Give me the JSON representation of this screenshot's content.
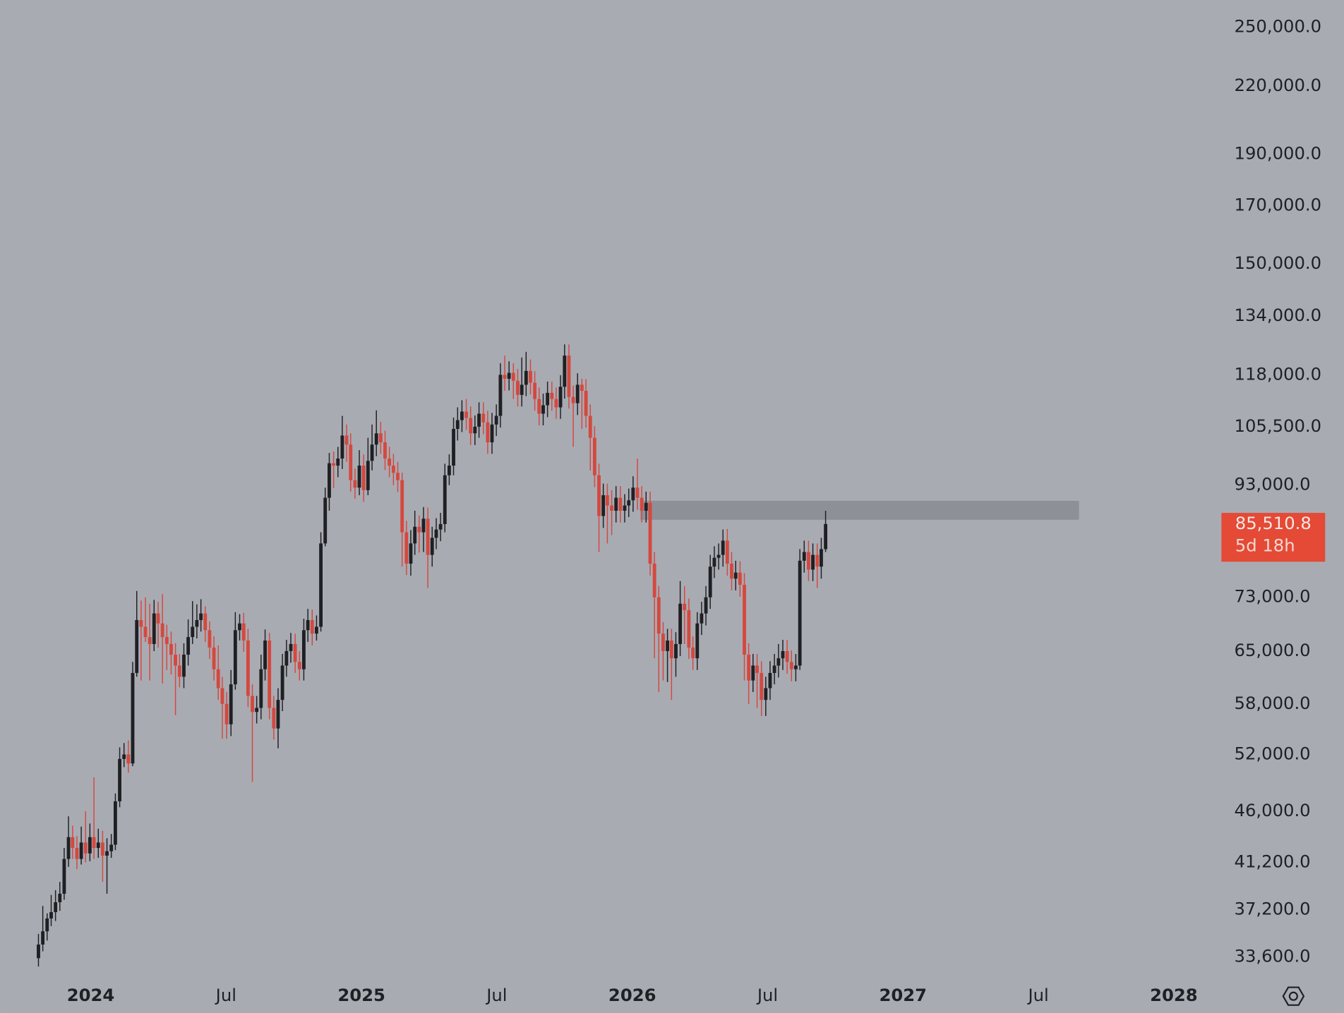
{
  "chart_data": {
    "type": "candlestick",
    "log_scale": true,
    "grid": false,
    "background": "#a9abb3",
    "up_color": "#1f2023",
    "down_color": "#d4483e",
    "xlim": [
      2023.665,
      2028.16
    ],
    "xticks": [
      2024,
      {
        "value": 2024.5,
        "label": "Jul"
      },
      2025,
      {
        "value": 2025.5,
        "label": "Jul"
      },
      2026,
      {
        "value": 2026.5,
        "label": "Jul"
      },
      2027,
      {
        "value": 2027.5,
        "label": "Jul"
      },
      2028
    ],
    "ylim": [
      32200,
      265000
    ],
    "yticks": [
      {
        "value": 250000,
        "label": "250,000.0"
      },
      {
        "value": 220000,
        "label": "220,000.0"
      },
      {
        "value": 190000,
        "label": "190,000.0"
      },
      {
        "value": 170000,
        "label": "170,000.0"
      },
      {
        "value": 150000,
        "label": "150,000.0"
      },
      {
        "value": 134000,
        "label": "134,000.0"
      },
      {
        "value": 118000,
        "label": "118,000.0"
      },
      {
        "value": 105500,
        "label": "105,500.0"
      },
      {
        "value": 93000,
        "label": "93,000.0"
      },
      {
        "value": 73000,
        "label": "73,000.0"
      },
      {
        "value": 65000,
        "label": "65,000.0"
      },
      {
        "value": 58000,
        "label": "58,000.0"
      },
      {
        "value": 52000,
        "label": "52,000.0"
      },
      {
        "value": 46000,
        "label": "46,000.0"
      },
      {
        "value": 41200,
        "label": "41,200.0"
      },
      {
        "value": 37200,
        "label": "37,200.0"
      },
      {
        "value": 33600,
        "label": "33,600.0"
      }
    ],
    "last_price": {
      "value": 85510.8,
      "label": "85,510.8"
    },
    "countdown": "5d 18h",
    "price_label_color": "#e44a35",
    "zone": {
      "x": [
        2026.03,
        2027.65
      ],
      "y": [
        86300,
        89900
      ],
      "color": "#8e9097"
    },
    "x": [
      2023.807,
      2023.823,
      2023.839,
      2023.854,
      2023.87,
      2023.886,
      2023.902,
      2023.918,
      2023.933,
      2023.949,
      2023.965,
      2023.981,
      2023.997,
      2024.012,
      2024.028,
      2024.044,
      2024.06,
      2024.076,
      2024.091,
      2024.107,
      2024.123,
      2024.139,
      2024.155,
      2024.17,
      2024.186,
      2024.202,
      2024.218,
      2024.234,
      2024.249,
      2024.265,
      2024.281,
      2024.297,
      2024.313,
      2024.328,
      2024.344,
      2024.36,
      2024.376,
      2024.392,
      2024.407,
      2024.423,
      2024.439,
      2024.455,
      2024.471,
      2024.486,
      2024.502,
      2024.518,
      2024.534,
      2024.55,
      2024.565,
      2024.581,
      2024.597,
      2024.613,
      2024.629,
      2024.644,
      2024.66,
      2024.676,
      2024.692,
      2024.708,
      2024.723,
      2024.739,
      2024.755,
      2024.771,
      2024.787,
      2024.802,
      2024.818,
      2024.834,
      2024.85,
      2024.866,
      2024.881,
      2024.897,
      2024.913,
      2024.929,
      2024.945,
      2024.96,
      2024.976,
      2024.992,
      2025.008,
      2025.024,
      2025.039,
      2025.055,
      2025.071,
      2025.087,
      2025.103,
      2025.118,
      2025.134,
      2025.15,
      2025.166,
      2025.182,
      2025.197,
      2025.213,
      2025.229,
      2025.245,
      2025.261,
      2025.276,
      2025.292,
      2025.308,
      2025.324,
      2025.34,
      2025.355,
      2025.371,
      2025.387,
      2025.403,
      2025.419,
      2025.434,
      2025.45,
      2025.466,
      2025.482,
      2025.498,
      2025.513,
      2025.529,
      2025.545,
      2025.561,
      2025.577,
      2025.592,
      2025.608,
      2025.624,
      2025.64,
      2025.656,
      2025.671,
      2025.687,
      2025.703,
      2025.719,
      2025.735,
      2025.75,
      2025.766,
      2025.782,
      2025.798,
      2025.814,
      2025.829,
      2025.845,
      2025.861,
      2025.877,
      2025.893,
      2025.908,
      2025.924,
      2025.94,
      2025.956,
      2025.972,
      2025.987,
      2026.003,
      2026.019,
      2026.035,
      2026.051,
      2026.066,
      2026.082,
      2026.098,
      2026.114,
      2026.13,
      2026.145,
      2026.161,
      2026.177,
      2026.193,
      2026.209,
      2026.224,
      2026.24,
      2026.256,
      2026.272,
      2026.288,
      2026.303,
      2026.319,
      2026.335,
      2026.351,
      2026.367,
      2026.382,
      2026.398,
      2026.414,
      2026.43,
      2026.446,
      2026.461,
      2026.477,
      2026.493,
      2026.509,
      2026.525,
      2026.54,
      2026.556,
      2026.572,
      2026.588,
      2026.604,
      2026.619,
      2026.635,
      2026.651,
      2026.667,
      2026.683,
      2026.698,
      2026.714
    ],
    "ohlc": [
      [
        33500,
        35300,
        32900,
        34500
      ],
      [
        34500,
        37500,
        34000,
        35500
      ],
      [
        35500,
        36900,
        34800,
        36500
      ],
      [
        36500,
        38400,
        35900,
        37000
      ],
      [
        37000,
        38800,
        36300,
        37800
      ],
      [
        37800,
        39500,
        37100,
        38500
      ],
      [
        38500,
        42500,
        38000,
        41500
      ],
      [
        41500,
        45500,
        40800,
        43500
      ],
      [
        43500,
        44600,
        41500,
        42500
      ],
      [
        42500,
        43600,
        40600,
        41500
      ],
      [
        41500,
        44500,
        41000,
        43000
      ],
      [
        43000,
        46000,
        41200,
        42000
      ],
      [
        42000,
        44800,
        41300,
        43500
      ],
      [
        43500,
        49500,
        41500,
        42500
      ],
      [
        42500,
        44300,
        41600,
        43000
      ],
      [
        43000,
        44100,
        39500,
        41800
      ],
      [
        41800,
        43400,
        38500,
        42200
      ],
      [
        42200,
        43800,
        41600,
        42800
      ],
      [
        42800,
        47800,
        42300,
        47000
      ],
      [
        47000,
        52800,
        46400,
        51500
      ],
      [
        51500,
        53300,
        50600,
        52000
      ],
      [
        52000,
        53600,
        50000,
        51000
      ],
      [
        51000,
        63500,
        50700,
        62000
      ],
      [
        62000,
        74000,
        61500,
        69500
      ],
      [
        69500,
        72500,
        61000,
        68500
      ],
      [
        68500,
        73000,
        66300,
        67000
      ],
      [
        67000,
        72000,
        61000,
        66000
      ],
      [
        66000,
        72600,
        65000,
        70500
      ],
      [
        70500,
        72300,
        65500,
        69000
      ],
      [
        69000,
        73500,
        60600,
        67000
      ],
      [
        67000,
        68800,
        62400,
        66000
      ],
      [
        66000,
        67800,
        61800,
        64500
      ],
      [
        64500,
        66100,
        56600,
        63000
      ],
      [
        63000,
        64600,
        60100,
        61500
      ],
      [
        61500,
        66100,
        60000,
        64500
      ],
      [
        64500,
        69600,
        63000,
        67000
      ],
      [
        67000,
        72400,
        66000,
        68500
      ],
      [
        68500,
        71900,
        66800,
        69500
      ],
      [
        69500,
        72700,
        67800,
        70500
      ],
      [
        70500,
        71600,
        66300,
        68000
      ],
      [
        68000,
        69300,
        63900,
        65500
      ],
      [
        65500,
        67100,
        61000,
        62500
      ],
      [
        62500,
        65800,
        58500,
        60000
      ],
      [
        60000,
        61500,
        53800,
        58000
      ],
      [
        58000,
        59500,
        53800,
        55500
      ],
      [
        55500,
        62400,
        54100,
        60500
      ],
      [
        60500,
        70700,
        59800,
        68000
      ],
      [
        68000,
        70400,
        66500,
        69000
      ],
      [
        69000,
        70600,
        64900,
        66500
      ],
      [
        66500,
        68200,
        57600,
        59000
      ],
      [
        59000,
        60500,
        49000,
        57000
      ],
      [
        57000,
        59000,
        55600,
        57500
      ],
      [
        57500,
        64500,
        56100,
        62500
      ],
      [
        62500,
        68100,
        61000,
        66500
      ],
      [
        66500,
        67600,
        56100,
        57500
      ],
      [
        57500,
        59000,
        53700,
        55000
      ],
      [
        55000,
        60000,
        52700,
        58500
      ],
      [
        58500,
        64600,
        57100,
        63000
      ],
      [
        63000,
        66600,
        61500,
        65000
      ],
      [
        65000,
        67600,
        63400,
        66000
      ],
      [
        66000,
        67500,
        62000,
        63500
      ],
      [
        63500,
        65000,
        61000,
        62500
      ],
      [
        62500,
        69700,
        61000,
        68000
      ],
      [
        68000,
        71200,
        66300,
        69500
      ],
      [
        69500,
        71100,
        65800,
        67500
      ],
      [
        67500,
        70200,
        66500,
        68500
      ],
      [
        68500,
        84000,
        67800,
        82000
      ],
      [
        82000,
        92500,
        81500,
        90500
      ],
      [
        90500,
        99700,
        88000,
        97500
      ],
      [
        97500,
        100000,
        92400,
        97000
      ],
      [
        97000,
        101000,
        94600,
        98500
      ],
      [
        98500,
        108000,
        96300,
        103500
      ],
      [
        103500,
        106000,
        97800,
        101500
      ],
      [
        101500,
        104000,
        91700,
        94000
      ],
      [
        94000,
        96400,
        90300,
        92500
      ],
      [
        92500,
        100300,
        91000,
        97000
      ],
      [
        97000,
        99400,
        89700,
        92000
      ],
      [
        92000,
        103000,
        91000,
        98000
      ],
      [
        98000,
        106000,
        96000,
        101500
      ],
      [
        101500,
        109300,
        99000,
        104000
      ],
      [
        104000,
        106600,
        99500,
        102000
      ],
      [
        102000,
        104600,
        96100,
        98500
      ],
      [
        98500,
        101000,
        94600,
        97000
      ],
      [
        97000,
        99500,
        93000,
        95500
      ],
      [
        95500,
        97800,
        91600,
        94000
      ],
      [
        94000,
        95500,
        78000,
        84000
      ],
      [
        84000,
        86100,
        76600,
        78500
      ],
      [
        78500,
        84400,
        76500,
        82000
      ],
      [
        82000,
        88000,
        80000,
        85000
      ],
      [
        85000,
        87100,
        80400,
        84000
      ],
      [
        84000,
        88700,
        80500,
        86500
      ],
      [
        86500,
        88600,
        74500,
        80000
      ],
      [
        80000,
        85000,
        78000,
        83000
      ],
      [
        83000,
        86600,
        81000,
        84500
      ],
      [
        84500,
        87600,
        82400,
        85500
      ],
      [
        85500,
        97400,
        84000,
        95000
      ],
      [
        95000,
        99400,
        93000,
        97000
      ],
      [
        97000,
        107600,
        95000,
        105000
      ],
      [
        105000,
        110000,
        102400,
        107000
      ],
      [
        107000,
        111700,
        104300,
        109000
      ],
      [
        109000,
        112000,
        104800,
        107500
      ],
      [
        107500,
        110200,
        101400,
        104000
      ],
      [
        104000,
        108100,
        101400,
        105500
      ],
      [
        105500,
        111200,
        103000,
        108500
      ],
      [
        108500,
        111200,
        103800,
        106500
      ],
      [
        106500,
        109200,
        99500,
        102000
      ],
      [
        102000,
        108700,
        99500,
        106000
      ],
      [
        106000,
        110700,
        103400,
        108000
      ],
      [
        108000,
        121000,
        105300,
        118000
      ],
      [
        118000,
        123000,
        114000,
        117000
      ],
      [
        117000,
        121500,
        114100,
        118500
      ],
      [
        118500,
        121000,
        112000,
        116500
      ],
      [
        116500,
        119500,
        110200,
        113000
      ],
      [
        113000,
        122500,
        110200,
        115500
      ],
      [
        115500,
        124000,
        112700,
        119000
      ],
      [
        119000,
        122000,
        113100,
        116000
      ],
      [
        116000,
        118900,
        109200,
        112000
      ],
      [
        112000,
        114800,
        105800,
        108500
      ],
      [
        108500,
        113300,
        105800,
        110500
      ],
      [
        110500,
        116300,
        107700,
        113500
      ],
      [
        113500,
        116300,
        109200,
        112000
      ],
      [
        112000,
        114800,
        107300,
        110000
      ],
      [
        110000,
        117900,
        107300,
        115000
      ],
      [
        115000,
        126000,
        112100,
        123000
      ],
      [
        123000,
        126000,
        109700,
        112500
      ],
      [
        112500,
        115300,
        101000,
        111000
      ],
      [
        111000,
        118400,
        108200,
        115500
      ],
      [
        115500,
        117000,
        105000,
        114000
      ],
      [
        114000,
        116900,
        105300,
        108000
      ],
      [
        108000,
        110700,
        96000,
        103000
      ],
      [
        103000,
        105600,
        92600,
        95000
      ],
      [
        95000,
        97400,
        80500,
        87000
      ],
      [
        87000,
        93300,
        84800,
        91000
      ],
      [
        91000,
        93300,
        82000,
        89000
      ],
      [
        89000,
        92000,
        83500,
        88000
      ],
      [
        88000,
        92800,
        85800,
        90500
      ],
      [
        90500,
        92800,
        85800,
        88000
      ],
      [
        88000,
        91200,
        85800,
        89000
      ],
      [
        89000,
        92300,
        86800,
        90000
      ],
      [
        90000,
        94800,
        87800,
        92500
      ],
      [
        92500,
        98500,
        88200,
        90500
      ],
      [
        90500,
        92800,
        85800,
        88000
      ],
      [
        88000,
        91700,
        85800,
        89500
      ],
      [
        89500,
        91700,
        76500,
        78500
      ],
      [
        78500,
        80500,
        64000,
        73000
      ],
      [
        73000,
        74800,
        59500,
        67500
      ],
      [
        67500,
        69200,
        61000,
        65000
      ],
      [
        65000,
        68200,
        60800,
        66500
      ],
      [
        66500,
        68200,
        58500,
        64000
      ],
      [
        64000,
        67700,
        61500,
        66000
      ],
      [
        66000,
        75600,
        64300,
        72000
      ],
      [
        72000,
        74800,
        66000,
        71000
      ],
      [
        71000,
        72800,
        63900,
        65500
      ],
      [
        65500,
        67100,
        62400,
        64000
      ],
      [
        64000,
        70700,
        62400,
        69000
      ],
      [
        69000,
        72300,
        67300,
        70500
      ],
      [
        70500,
        74800,
        68700,
        73000
      ],
      [
        73000,
        80000,
        71200,
        78000
      ],
      [
        78000,
        81500,
        76100,
        79500
      ],
      [
        79500,
        82000,
        77500,
        80000
      ],
      [
        80000,
        84500,
        78000,
        82500
      ],
      [
        82500,
        84600,
        76500,
        78500
      ],
      [
        78500,
        80500,
        74100,
        76000
      ],
      [
        76000,
        79000,
        74100,
        77000
      ],
      [
        77000,
        78900,
        73100,
        75000
      ],
      [
        75000,
        76900,
        61000,
        64500
      ],
      [
        64500,
        66100,
        58000,
        61000
      ],
      [
        61000,
        64600,
        59500,
        63000
      ],
      [
        63000,
        64600,
        57500,
        62000
      ],
      [
        62000,
        63600,
        56500,
        58500
      ],
      [
        58500,
        61500,
        56500,
        60000
      ],
      [
        60000,
        63600,
        58500,
        62000
      ],
      [
        62000,
        64600,
        60500,
        63000
      ],
      [
        63000,
        66000,
        61400,
        64000
      ],
      [
        64000,
        66600,
        62400,
        65000
      ],
      [
        65000,
        66600,
        61900,
        63500
      ],
      [
        63500,
        65100,
        60900,
        62500
      ],
      [
        62500,
        64600,
        60900,
        63000
      ],
      [
        63000,
        81000,
        62400,
        79000
      ],
      [
        79000,
        82500,
        77000,
        80500
      ],
      [
        80500,
        82500,
        75600,
        77500
      ],
      [
        77500,
        82000,
        75600,
        80000
      ],
      [
        80000,
        82000,
        74500,
        78000
      ],
      [
        78000,
        83000,
        76000,
        81000
      ],
      [
        81000,
        88000,
        80500,
        85510.8
      ]
    ]
  }
}
